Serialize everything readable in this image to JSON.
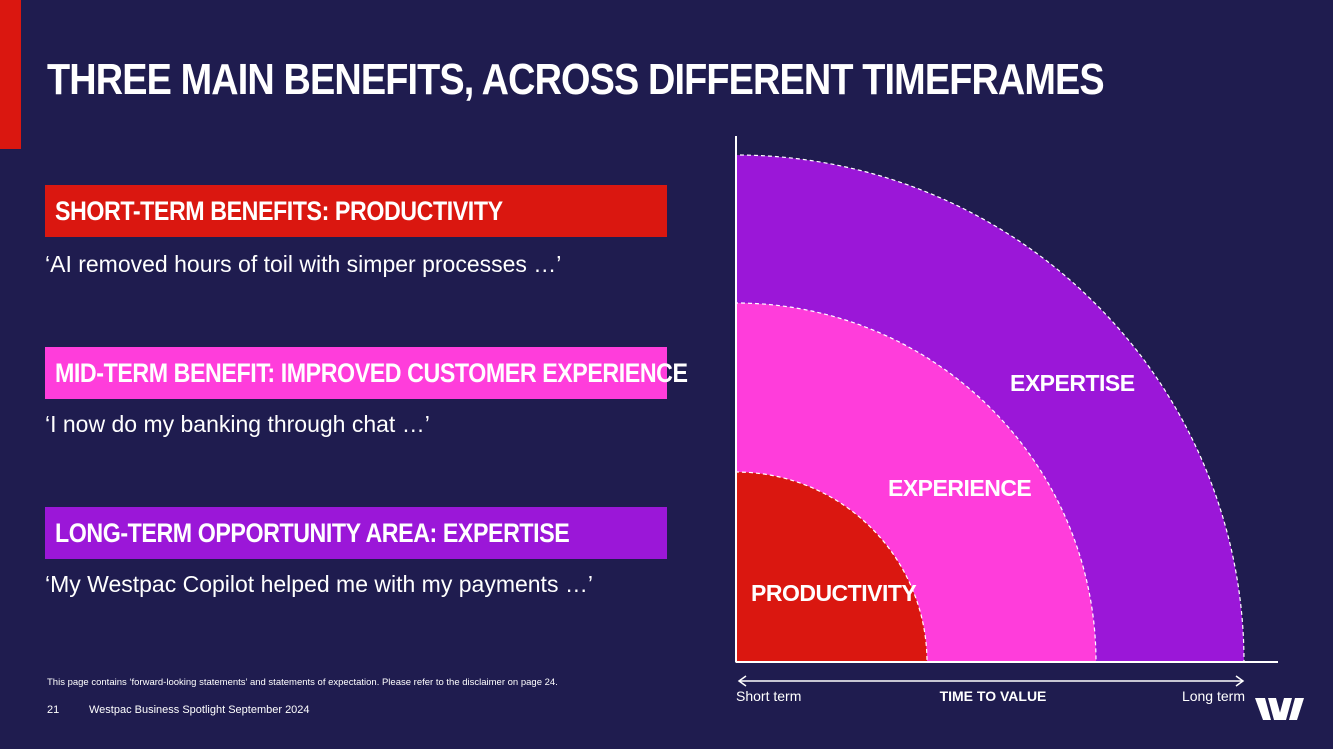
{
  "title": "THREE MAIN BENEFITS, ACROSS DIFFERENT TIMEFRAMES",
  "benefits": [
    {
      "heading": "SHORT-TERM BENEFITS: PRODUCTIVITY",
      "quote": "‘AI removed hours of toil with simper processes …’",
      "color": "#da1710"
    },
    {
      "heading": "MID-TERM BENEFIT: IMPROVED CUSTOMER EXPERIENCE",
      "quote": "‘I now do my banking through chat …’",
      "color": "#ff3ddb"
    },
    {
      "heading": "LONG-TERM OPPORTUNITY AREA: EXPERTISE",
      "quote": "‘My Westpac Copilot helped me with my payments …’",
      "color": "#9b17d8"
    }
  ],
  "diagram": {
    "layers": [
      {
        "label": "PRODUCTIVITY",
        "color": "#da1710"
      },
      {
        "label": "EXPERIENCE",
        "color": "#ff3ddb"
      },
      {
        "label": "EXPERTISE",
        "color": "#9b17d8"
      }
    ],
    "axis": {
      "left_label": "Short term",
      "title": "TIME TO VALUE",
      "right_label": "Long term"
    }
  },
  "disclaimer": "This page contains ‘forward-looking statements’ and statements of expectation. Please refer to the disclaimer on page 24.",
  "footer": {
    "page_number": "21",
    "publication": "Westpac Business Spotlight September 2024"
  },
  "brand": {
    "accent": "#da1710",
    "background": "#1f1c4f",
    "logo": "westpac-w-logo"
  }
}
